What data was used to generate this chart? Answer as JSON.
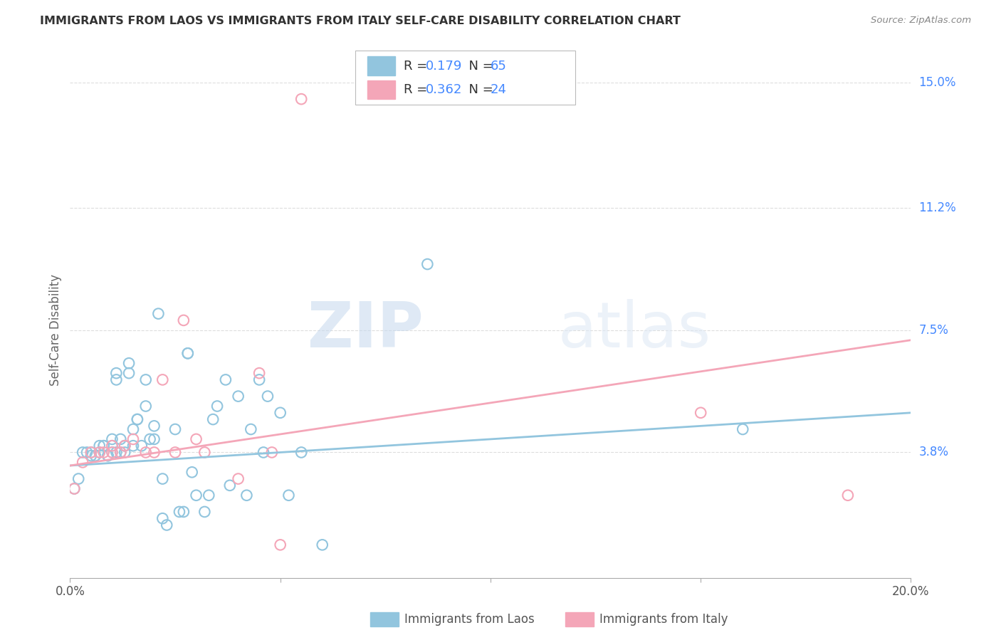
{
  "title": "IMMIGRANTS FROM LAOS VS IMMIGRANTS FROM ITALY SELF-CARE DISABILITY CORRELATION CHART",
  "source": "Source: ZipAtlas.com",
  "ylabel_label": "Self-Care Disability",
  "x_min": 0.0,
  "x_max": 0.2,
  "y_min": 0.0,
  "y_max": 0.15,
  "x_ticks": [
    0.0,
    0.05,
    0.1,
    0.15,
    0.2
  ],
  "x_tick_labels": [
    "0.0%",
    "",
    "",
    "",
    "20.0%"
  ],
  "y_ticks_right": [
    0.0,
    0.038,
    0.075,
    0.112,
    0.15
  ],
  "y_tick_labels_right": [
    "",
    "3.8%",
    "7.5%",
    "11.2%",
    "15.0%"
  ],
  "legend_blue_r": "0.179",
  "legend_blue_n": "65",
  "legend_pink_r": "0.362",
  "legend_pink_n": "24",
  "color_blue": "#92c5de",
  "color_pink": "#f4a6b8",
  "color_text_blue": "#4488ff",
  "background": "#ffffff",
  "watermark_zip": "ZIP",
  "watermark_atlas": "atlas",
  "blue_points_x": [
    0.001,
    0.002,
    0.003,
    0.004,
    0.005,
    0.005,
    0.006,
    0.007,
    0.007,
    0.008,
    0.008,
    0.009,
    0.009,
    0.01,
    0.01,
    0.01,
    0.011,
    0.011,
    0.011,
    0.012,
    0.012,
    0.013,
    0.013,
    0.013,
    0.014,
    0.014,
    0.015,
    0.015,
    0.016,
    0.016,
    0.017,
    0.018,
    0.018,
    0.019,
    0.02,
    0.02,
    0.021,
    0.022,
    0.022,
    0.023,
    0.025,
    0.026,
    0.027,
    0.028,
    0.028,
    0.029,
    0.03,
    0.032,
    0.033,
    0.034,
    0.035,
    0.037,
    0.038,
    0.04,
    0.042,
    0.043,
    0.045,
    0.046,
    0.047,
    0.05,
    0.052,
    0.055,
    0.06,
    0.085,
    0.16
  ],
  "blue_points_y": [
    0.027,
    0.03,
    0.038,
    0.038,
    0.037,
    0.038,
    0.037,
    0.04,
    0.038,
    0.04,
    0.04,
    0.037,
    0.037,
    0.04,
    0.038,
    0.042,
    0.062,
    0.06,
    0.038,
    0.042,
    0.038,
    0.04,
    0.04,
    0.038,
    0.065,
    0.062,
    0.045,
    0.04,
    0.048,
    0.048,
    0.04,
    0.06,
    0.052,
    0.042,
    0.046,
    0.042,
    0.08,
    0.03,
    0.018,
    0.016,
    0.045,
    0.02,
    0.02,
    0.068,
    0.068,
    0.032,
    0.025,
    0.02,
    0.025,
    0.048,
    0.052,
    0.06,
    0.028,
    0.055,
    0.025,
    0.045,
    0.06,
    0.038,
    0.055,
    0.05,
    0.025,
    0.038,
    0.01,
    0.095,
    0.045
  ],
  "pink_points_x": [
    0.001,
    0.003,
    0.005,
    0.007,
    0.008,
    0.01,
    0.01,
    0.012,
    0.013,
    0.015,
    0.018,
    0.02,
    0.022,
    0.025,
    0.027,
    0.03,
    0.032,
    0.04,
    0.045,
    0.048,
    0.05,
    0.055,
    0.15,
    0.185
  ],
  "pink_points_y": [
    0.027,
    0.035,
    0.038,
    0.038,
    0.038,
    0.038,
    0.04,
    0.038,
    0.04,
    0.042,
    0.038,
    0.038,
    0.06,
    0.038,
    0.078,
    0.042,
    0.038,
    0.03,
    0.062,
    0.038,
    0.01,
    0.145,
    0.05,
    0.025
  ],
  "blue_line_x": [
    0.0,
    0.2
  ],
  "blue_line_y_start": 0.034,
  "blue_line_y_end": 0.05,
  "pink_line_y_start": 0.034,
  "pink_line_y_end": 0.072
}
